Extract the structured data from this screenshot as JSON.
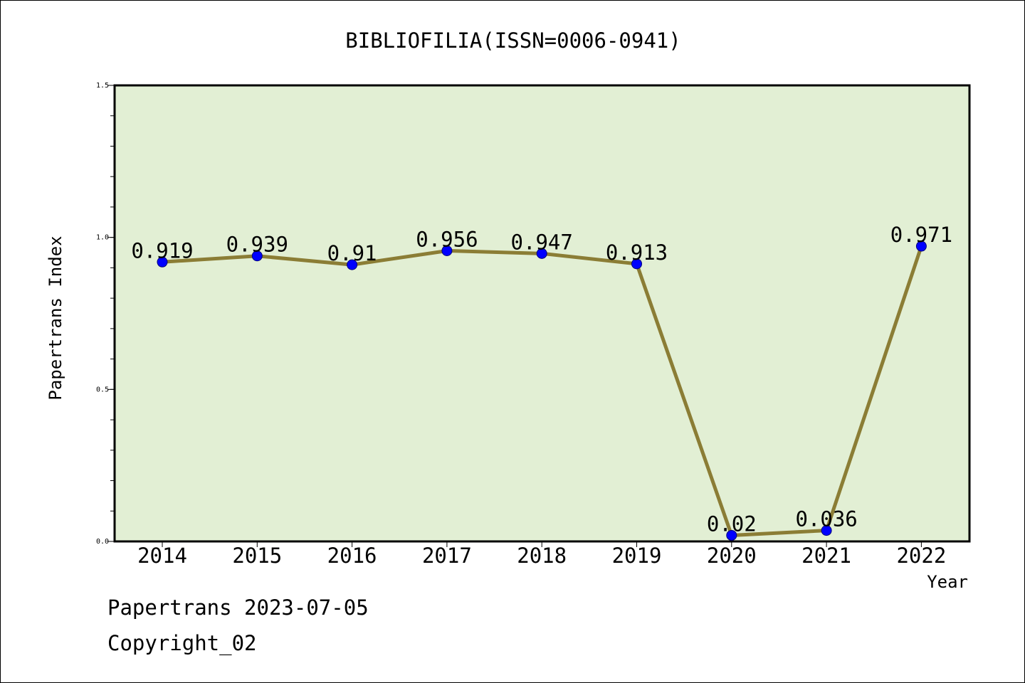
{
  "chart_data": {
    "type": "line",
    "title": "BIBLIOFILIA(ISSN=0006-0941)",
    "xlabel": "Year",
    "ylabel": "Papertrans Index",
    "categories": [
      "2014",
      "2015",
      "2016",
      "2017",
      "2018",
      "2019",
      "2020",
      "2021",
      "2022"
    ],
    "values": [
      0.919,
      0.939,
      0.91,
      0.956,
      0.947,
      0.913,
      0.02,
      0.036,
      0.971
    ],
    "data_labels": [
      "0.919",
      "0.939",
      "0.91",
      "0.956",
      "0.947",
      "0.913",
      "0.02",
      "0.036",
      "0.971"
    ],
    "ylim": [
      0,
      1.5
    ],
    "y_ticks": [
      0.0,
      0.5,
      1.0,
      1.5
    ],
    "y_tick_labels": [
      "0.0",
      "0.5",
      "1.0",
      "1.5"
    ],
    "grid": false,
    "legend": "none",
    "colors": {
      "plot_background": "#e2efd4",
      "line": "#8b7d35",
      "marker": "#0000ff",
      "axes": "#000000"
    }
  },
  "footer": {
    "line1": "Papertrans 2023-07-05",
    "line2": "Copyright_02"
  }
}
